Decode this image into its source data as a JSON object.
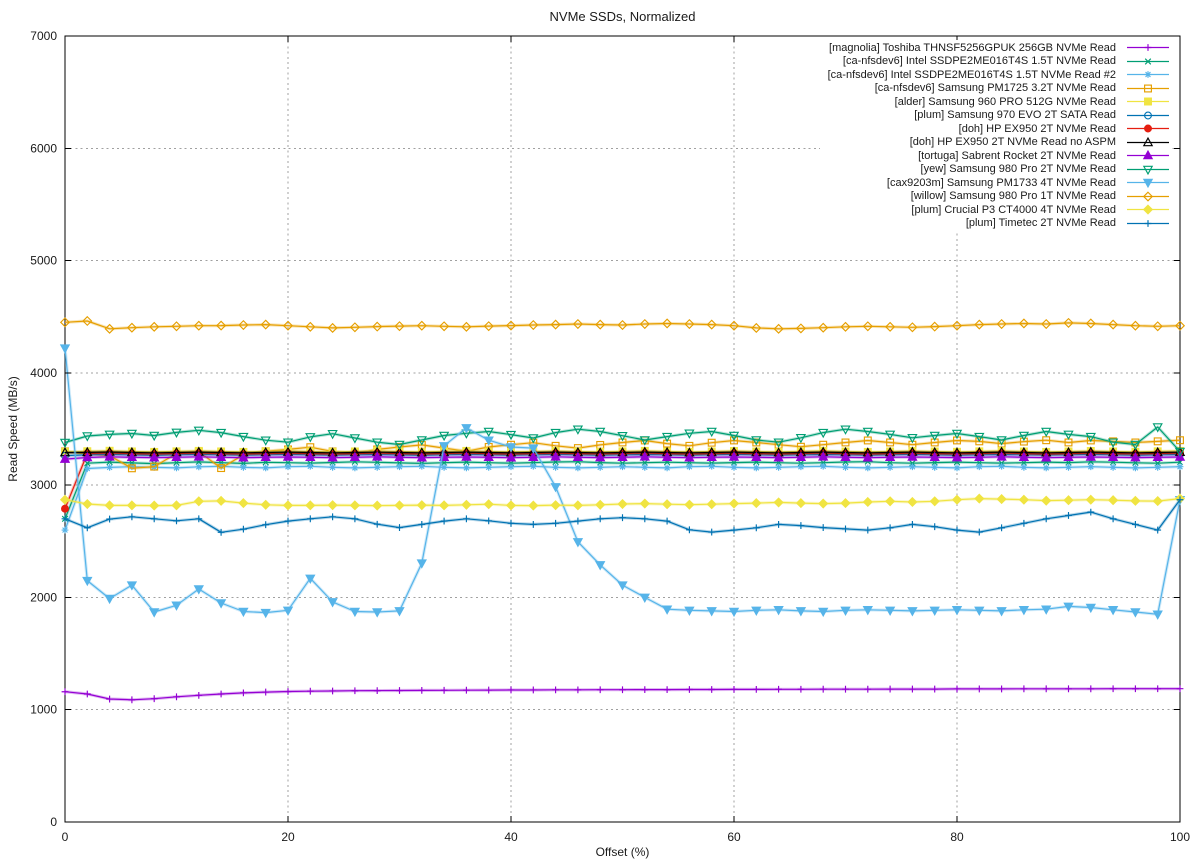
{
  "chart_data": {
    "type": "line",
    "title": "NVMe SSDs, Normalized",
    "xlabel": "Offset (%)",
    "ylabel": "Read Speed (MB/s)",
    "xlim": [
      0,
      100
    ],
    "ylim": [
      0,
      7000
    ],
    "xticks": [
      0,
      20,
      40,
      60,
      80,
      100
    ],
    "yticks": [
      0,
      1000,
      2000,
      3000,
      4000,
      5000,
      6000,
      7000
    ],
    "grid": true,
    "legend_position": "top-right-inside",
    "x_start": 0,
    "x_step": 2,
    "series": [
      {
        "name": "[magnolia] Toshiba THNSF5256GPUK 256GB NVMe Read",
        "color": "#9400d3",
        "marker": "plus",
        "values": [
          1160,
          1140,
          1095,
          1088,
          1098,
          1115,
          1128,
          1140,
          1150,
          1157,
          1162,
          1165,
          1167,
          1169,
          1170,
          1171,
          1172,
          1173,
          1174,
          1175,
          1176,
          1176,
          1177,
          1177,
          1178,
          1178,
          1179,
          1179,
          1180,
          1180,
          1181,
          1181,
          1182,
          1182,
          1183,
          1183,
          1183,
          1184,
          1184,
          1184,
          1185,
          1185,
          1185,
          1186,
          1186,
          1186,
          1186,
          1187,
          1187,
          1187,
          1187
        ]
      },
      {
        "name": "[ca-nfsdev6] Intel SSDPE2ME016T4S 1.5T NVMe Read",
        "color": "#009e73",
        "marker": "cross",
        "values": [
          2700,
          3195,
          3205,
          3198,
          3192,
          3200,
          3207,
          3200,
          3194,
          3203,
          3200,
          3196,
          3202,
          3208,
          3203,
          3198,
          3194,
          3200,
          3205,
          3200,
          3195,
          3201,
          3206,
          3209,
          3201,
          3195,
          3200,
          3204,
          3200,
          3196,
          3201,
          3205,
          3200,
          3195,
          3200,
          3206,
          3209,
          3200,
          3195,
          3201,
          3205,
          3200,
          3196,
          3200,
          3205,
          3201,
          3208,
          3204,
          3199,
          3195,
          3204
        ]
      },
      {
        "name": "[ca-nfsdev6] Intel SSDPE2ME016T4S 1.5T NVMe Read #2",
        "color": "#56b4e9",
        "marker": "asterisk",
        "values": [
          2600,
          3148,
          3158,
          3164,
          3159,
          3154,
          3163,
          3168,
          3159,
          3154,
          3164,
          3168,
          3159,
          3154,
          3159,
          3164,
          3168,
          3159,
          3154,
          3159,
          3164,
          3168,
          3159,
          3154,
          3159,
          3164,
          3159,
          3154,
          3164,
          3168,
          3159,
          3154,
          3159,
          3164,
          3168,
          3159,
          3154,
          3159,
          3164,
          3159,
          3154,
          3164,
          3168,
          3159,
          3154,
          3159,
          3164,
          3159,
          3154,
          3159,
          3164
        ]
      },
      {
        "name": "[ca-nfsdev6] Samsung PM1725 3.2T NVMe Read",
        "color": "#e69f00",
        "marker": "square-open",
        "values": [
          3300,
          3278,
          3262,
          3150,
          3165,
          3282,
          3298,
          3152,
          3270,
          3302,
          3318,
          3338,
          3300,
          3282,
          3318,
          3340,
          3358,
          3330,
          3302,
          3340,
          3360,
          3378,
          3350,
          3330,
          3358,
          3380,
          3398,
          3370,
          3350,
          3378,
          3398,
          3380,
          3360,
          3342,
          3360,
          3380,
          3398,
          3380,
          3360,
          3380,
          3398,
          3390,
          3370,
          3388,
          3400,
          3380,
          3398,
          3390,
          3380,
          3390,
          3400
        ]
      },
      {
        "name": "[alder] Samsung 960 PRO 512G NVMe Read",
        "color": "#f0e442",
        "marker": "square-filled",
        "values": [
          3295,
          3302,
          3306,
          3300,
          3296,
          3301,
          3305,
          3300,
          3296,
          3300,
          3304,
          3300,
          3296,
          3300,
          3305,
          3300,
          3296,
          3301,
          3305,
          3300,
          3296,
          3300,
          3304,
          3300,
          3297,
          3301,
          3305,
          3300,
          3296,
          3300,
          3304,
          3300,
          3296,
          3301,
          3305,
          3300,
          3296,
          3300,
          3304,
          3300,
          3297,
          3301,
          3305,
          3300,
          3296,
          3300,
          3304,
          3300,
          3297,
          3301,
          3305
        ]
      },
      {
        "name": "[plum] Samsung 970 EVO 2T SATA Read",
        "color": "#0072b2",
        "marker": "circle-open",
        "values": [
          3262,
          3270,
          3274,
          3269,
          3265,
          3270,
          3274,
          3270,
          3266,
          3270,
          3274,
          3270,
          3266,
          3270,
          3273,
          3269,
          3265,
          3270,
          3274,
          3270,
          3266,
          3270,
          3274,
          3270,
          3266,
          3270,
          3273,
          3270,
          3266,
          3270,
          3274,
          3270,
          3266,
          3270,
          3273,
          3270,
          3266,
          3270,
          3274,
          3270,
          3266,
          3270,
          3273,
          3270,
          3267,
          3270,
          3274,
          3270,
          3266,
          3270,
          3273
        ]
      },
      {
        "name": "[doh] HP EX950 2T NVMe Read",
        "color": "#e51e10",
        "marker": "circle-filled",
        "values": [
          2790,
          3282,
          3286,
          3281,
          3277,
          3282,
          3286,
          3281,
          3277,
          3281,
          3285,
          3281,
          3277,
          3281,
          3286,
          3281,
          3277,
          3282,
          3286,
          3281,
          3277,
          3281,
          3285,
          3281,
          3278,
          3282,
          3286,
          3281,
          3277,
          3281,
          3285,
          3281,
          3277,
          3282,
          3286,
          3281,
          3277,
          3281,
          3285,
          3281,
          3278,
          3282,
          3286,
          3281,
          3277,
          3281,
          3285,
          3281,
          3278,
          3282,
          3285
        ]
      },
      {
        "name": "[doh] HP EX950 2T NVMe Read no ASPM",
        "color": "#000000",
        "marker": "triangle-up-open",
        "values": [
          3290,
          3292,
          3295,
          3291,
          3288,
          3291,
          3294,
          3291,
          3288,
          3291,
          3294,
          3291,
          3288,
          3291,
          3294,
          3291,
          3288,
          3291,
          3294,
          3291,
          3288,
          3291,
          3294,
          3291,
          3288,
          3291,
          3294,
          3291,
          3288,
          3291,
          3294,
          3291,
          3288,
          3291,
          3294,
          3291,
          3288,
          3291,
          3294,
          3291,
          3288,
          3291,
          3294,
          3291,
          3288,
          3291,
          3294,
          3291,
          3288,
          3291,
          3293
        ]
      },
      {
        "name": "[tortuga] Sabrent Rocket 2T NVMe Read",
        "color": "#9400d3",
        "marker": "triangle-up-filled",
        "values": [
          3232,
          3246,
          3252,
          3248,
          3244,
          3248,
          3252,
          3248,
          3244,
          3248,
          3251,
          3248,
          3244,
          3248,
          3252,
          3248,
          3244,
          3248,
          3251,
          3248,
          3244,
          3248,
          3252,
          3248,
          3245,
          3248,
          3252,
          3248,
          3244,
          3248,
          3251,
          3248,
          3244,
          3248,
          3252,
          3248,
          3244,
          3248,
          3251,
          3248,
          3245,
          3248,
          3252,
          3248,
          3244,
          3248,
          3251,
          3248,
          3245,
          3248,
          3251
        ]
      },
      {
        "name": "[yew] Samsung 980 Pro 2T NVMe Read",
        "color": "#009e73",
        "marker": "triangle-down-open",
        "values": [
          3380,
          3438,
          3452,
          3460,
          3442,
          3470,
          3488,
          3468,
          3432,
          3400,
          3382,
          3430,
          3458,
          3420,
          3382,
          3362,
          3402,
          3442,
          3462,
          3478,
          3450,
          3420,
          3468,
          3498,
          3478,
          3440,
          3402,
          3432,
          3462,
          3478,
          3442,
          3402,
          3382,
          3422,
          3468,
          3498,
          3478,
          3452,
          3422,
          3442,
          3460,
          3432,
          3402,
          3442,
          3478,
          3452,
          3432,
          3382,
          3362,
          3518,
          3300
        ]
      },
      {
        "name": "[cax9203m] Samsung PM1733 4T NVMe Read",
        "color": "#56b4e9",
        "marker": "triangle-down-filled",
        "values": [
          4220,
          2150,
          1990,
          2110,
          1870,
          1930,
          2075,
          1950,
          1875,
          1865,
          1885,
          2170,
          1960,
          1875,
          1870,
          1880,
          2305,
          3350,
          3510,
          3400,
          3340,
          3330,
          2985,
          2495,
          2290,
          2110,
          2000,
          1895,
          1885,
          1880,
          1875,
          1885,
          1890,
          1880,
          1875,
          1885,
          1890,
          1885,
          1880,
          1885,
          1890,
          1885,
          1880,
          1890,
          1895,
          1920,
          1910,
          1890,
          1870,
          1850,
          2870
        ]
      },
      {
        "name": "[willow] Samsung 980 Pro 1T NVMe Read",
        "color": "#e69f00",
        "marker": "diamond-open",
        "values": [
          4450,
          4462,
          4392,
          4402,
          4410,
          4415,
          4420,
          4421,
          4426,
          4430,
          4420,
          4410,
          4400,
          4406,
          4412,
          4416,
          4420,
          4415,
          4410,
          4416,
          4421,
          4426,
          4430,
          4435,
          4430,
          4426,
          4435,
          4440,
          4435,
          4430,
          4420,
          4400,
          4392,
          4396,
          4402,
          4410,
          4415,
          4410,
          4406,
          4412,
          4420,
          4430,
          4435,
          4440,
          4435,
          4445,
          4440,
          4430,
          4420,
          4415,
          4420
        ]
      },
      {
        "name": "[plum] Crucial P3 CT4000 4T NVMe Read",
        "color": "#f0e442",
        "marker": "diamond-filled",
        "values": [
          2870,
          2832,
          2820,
          2820,
          2818,
          2820,
          2856,
          2860,
          2840,
          2825,
          2820,
          2820,
          2822,
          2820,
          2818,
          2820,
          2822,
          2820,
          2825,
          2830,
          2820,
          2818,
          2822,
          2820,
          2825,
          2832,
          2836,
          2830,
          2826,
          2830,
          2836,
          2840,
          2846,
          2840,
          2836,
          2840,
          2850,
          2856,
          2850,
          2856,
          2870,
          2880,
          2876,
          2870,
          2862,
          2866,
          2870,
          2866,
          2860,
          2858,
          2880
        ]
      },
      {
        "name": "[plum] Timetec 2T NVMe Read",
        "color": "#0072b2",
        "marker": "plus",
        "values": [
          2700,
          2620,
          2698,
          2718,
          2700,
          2682,
          2700,
          2580,
          2608,
          2648,
          2680,
          2700,
          2718,
          2700,
          2652,
          2622,
          2650,
          2680,
          2700,
          2682,
          2660,
          2650,
          2660,
          2680,
          2700,
          2710,
          2700,
          2680,
          2602,
          2582,
          2600,
          2620,
          2650,
          2640,
          2622,
          2610,
          2600,
          2620,
          2650,
          2630,
          2600,
          2582,
          2620,
          2660,
          2700,
          2730,
          2760,
          2700,
          2650,
          2600,
          2870
        ]
      }
    ],
    "style": {
      "grid_color": "#a0a0a0",
      "border_color": "#000000",
      "text_color": "#1a1a1a"
    }
  }
}
